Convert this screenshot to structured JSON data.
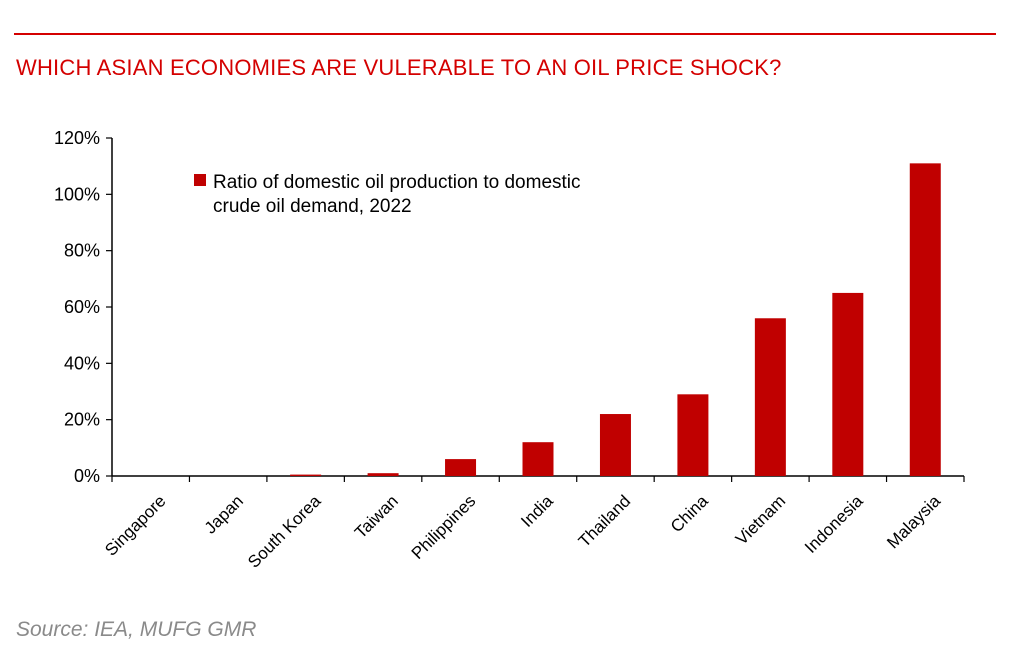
{
  "header": {
    "title": "WHICH ASIAN ECONOMIES ARE VULERABLE TO AN OIL PRICE SHOCK?"
  },
  "footer": {
    "source": "Source: IEA, MUFG GMR"
  },
  "colors": {
    "accent": "#d40000",
    "bar": "#c00000",
    "source_text": "#8a8a8a"
  },
  "chart_data": {
    "type": "bar",
    "categories": [
      "Singapore",
      "Japan",
      "South Korea",
      "Taiwan",
      "Philippines",
      "India",
      "Thailand",
      "China",
      "Vietnam",
      "Indonesia",
      "Malaysia"
    ],
    "series": [
      {
        "name": "Ratio of domestic oil production to domestic crude oil demand, 2022",
        "legend_lines": [
          "Ratio of domestic oil production to domestic",
          "crude oil demand, 2022"
        ],
        "values": [
          0,
          0,
          0.5,
          1,
          6,
          12,
          22,
          29,
          56,
          65,
          111
        ]
      }
    ],
    "y_ticks": [
      "0%",
      "20%",
      "40%",
      "60%",
      "80%",
      "100%",
      "120%"
    ],
    "ylim": [
      0,
      120
    ],
    "grid": false,
    "legend_position": "top-left"
  }
}
